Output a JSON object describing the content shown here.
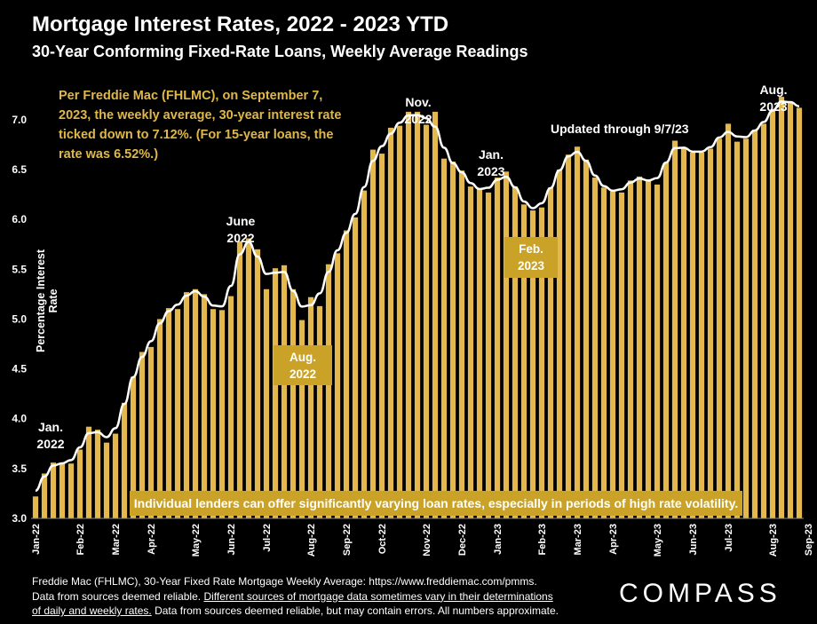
{
  "chart_data": {
    "type": "bar",
    "title": "Mortgage Interest Rates, 2022 - 2023 YTD",
    "subtitle": "30-Year Conforming Fixed-Rate Loans, Weekly Average Readings",
    "ylabel": "Percentage Interest Rate",
    "ylim": [
      3.0,
      7.4
    ],
    "yticks": [
      "3.0",
      "3.5",
      "4.0",
      "4.5",
      "5.0",
      "5.5",
      "6.0",
      "6.5",
      "7.0"
    ],
    "xtick_labels": [
      "Jan-22",
      "Feb-22",
      "Mar-22",
      "Apr-22",
      "May-22",
      "Jun-22",
      "Jul-22",
      "Aug-22",
      "Sep-22",
      "Oct-22",
      "Nov-22",
      "Dec-22",
      "Jan-23",
      "Feb-23",
      "Mar-23",
      "Apr-23",
      "May-23",
      "Jun-23",
      "Jul-23",
      "Aug-23",
      "Sep-23"
    ],
    "xtick_week_index": [
      0,
      5,
      9,
      13,
      18,
      22,
      26,
      31,
      35,
      39,
      44,
      48,
      52,
      57,
      61,
      65,
      70,
      74,
      78,
      83,
      87
    ],
    "series": [
      {
        "type": "bar",
        "values": [
          3.22,
          3.45,
          3.56,
          3.55,
          3.55,
          3.69,
          3.92,
          3.89,
          3.76,
          3.85,
          4.16,
          4.42,
          4.67,
          4.72,
          5.0,
          5.11,
          5.1,
          5.27,
          5.3,
          5.25,
          5.1,
          5.09,
          5.23,
          5.78,
          5.81,
          5.7,
          5.3,
          5.51,
          5.54,
          5.3,
          4.99,
          5.22,
          5.13,
          5.55,
          5.66,
          5.89,
          6.02,
          6.29,
          6.7,
          6.66,
          6.92,
          6.94,
          7.08,
          7.08,
          6.95,
          7.08,
          6.61,
          6.58,
          6.49,
          6.33,
          6.31,
          6.27,
          6.42,
          6.48,
          6.33,
          6.15,
          6.09,
          6.12,
          6.32,
          6.5,
          6.65,
          6.73,
          6.6,
          6.42,
          6.32,
          6.28,
          6.27,
          6.39,
          6.43,
          6.39,
          6.35,
          6.57,
          6.79,
          6.71,
          6.67,
          6.67,
          6.71,
          6.81,
          6.96,
          6.78,
          6.81,
          6.9,
          6.96,
          7.09,
          7.23,
          7.18,
          7.12
        ]
      },
      {
        "type": "line",
        "note": "smoothed trend",
        "color": "#ffffff"
      }
    ],
    "colors": {
      "bar": "#e3b94f",
      "line": "#ffffff",
      "background": "#000000",
      "accent": "#c9a227"
    },
    "annotations": [
      {
        "label_lines": [
          "Jan.",
          "2022"
        ],
        "at_week": 2
      },
      {
        "label_lines": [
          "June",
          "2022"
        ],
        "at_week": 24
      },
      {
        "label_lines": [
          "Aug.",
          "2022"
        ],
        "at_week": 31,
        "boxed": true
      },
      {
        "label_lines": [
          "Nov.",
          "2022"
        ],
        "at_week": 43
      },
      {
        "label_lines": [
          "Jan.",
          "2023"
        ],
        "at_week": 53
      },
      {
        "label_lines": [
          "Feb.",
          "2023"
        ],
        "at_week": 57,
        "boxed": true
      },
      {
        "label_lines": [
          "Aug.",
          "2023"
        ],
        "at_week": 85
      }
    ],
    "note": "Per Freddie Mac (FHLMC), on September 7, 2023, the weekly average, 30-year interest rate ticked down to 7.12%. (For 15-year loans, the rate was 6.52%.)",
    "updated": "Updated through 9/7/23",
    "banner": "Individual lenders can offer significantly varying loan rates, especially in periods of high rate volatility.",
    "grid": false,
    "legend": "none"
  },
  "footer": {
    "line1": "Freddie Mac (FHLMC), 30-Year Fixed Rate Mortgage Weekly Average:  https://www.freddiemac.com/pmms.",
    "line2a": "Data from sources deemed reliable. ",
    "line2b": "Different sources of mortgage data sometimes vary in their determinations",
    "line3a": "of daily and weekly rates.",
    "line3b": " Data from sources deemed reliable, but may contain errors. All numbers approximate."
  },
  "logo": "COMPASS"
}
